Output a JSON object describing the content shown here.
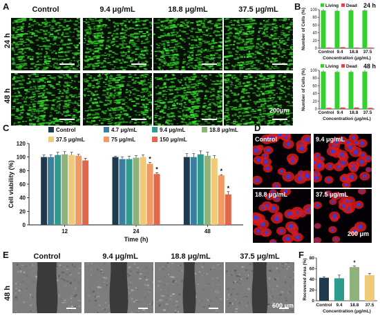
{
  "panel_labels": {
    "A": "A",
    "B": "B",
    "C": "C",
    "D": "D",
    "E": "E",
    "F": "F"
  },
  "panelA": {
    "columns": [
      "Control",
      "9.4 μg/mL",
      "18.8 μg/mL",
      "37.5 μg/mL"
    ],
    "rows": [
      "24 h",
      "48 h"
    ],
    "scale": "200μm"
  },
  "colors": {
    "green": "#32d12d",
    "red": "#e8424a",
    "navy": "#1f3a4d",
    "wound_bg": "#7d7d7d"
  },
  "panelD": {
    "labels": [
      "Control",
      "9.4 μg/mL",
      "18.8 μg/mL",
      "37.5 μg/mL"
    ],
    "scale": "200 μm"
  },
  "panelE": {
    "columns": [
      "Control",
      "9.4 μg/mL",
      "18.8 μg/mL",
      "37.5 μg/mL"
    ],
    "row": "48 h",
    "scale": "600 μm"
  },
  "chart_data": [
    {
      "id": "B-24h",
      "type": "bar",
      "time_label": "24 h",
      "categories": [
        "Control",
        "9.4",
        "18.8",
        "37.5"
      ],
      "series": [
        {
          "name": "Living",
          "values": [
            98,
            97,
            98,
            98
          ]
        },
        {
          "name": "Dead",
          "values": [
            2,
            3,
            2,
            2
          ]
        }
      ],
      "ylabel": "Number of Cells (%)",
      "xlabel": "Concentration (μg/mL)",
      "ylim": [
        0,
        100
      ],
      "yticks": [
        0,
        20,
        40,
        60,
        80,
        100
      ],
      "legend": "top"
    },
    {
      "id": "B-48h",
      "type": "bar",
      "time_label": "48 h",
      "categories": [
        "Control",
        "9.4",
        "18.8",
        "37.5"
      ],
      "series": [
        {
          "name": "Living",
          "values": [
            97,
            96,
            96,
            97
          ]
        },
        {
          "name": "Dead",
          "values": [
            3,
            4,
            4,
            3
          ]
        }
      ],
      "ylabel": "Number of Cells (%)",
      "xlabel": "Concentration (μg/mL)",
      "ylim": [
        0,
        100
      ],
      "yticks": [
        0,
        20,
        40,
        60,
        80,
        100
      ],
      "legend": "top"
    },
    {
      "id": "C",
      "type": "bar",
      "categories": [
        "12",
        "24",
        "48"
      ],
      "series": [
        {
          "name": "Control",
          "color": "#1f3a4d",
          "values": [
            100,
            100,
            100
          ],
          "err": [
            3,
            1,
            5
          ]
        },
        {
          "name": "4.7 μg/mL",
          "color": "#3a7f9e",
          "values": [
            100,
            97,
            100
          ],
          "err": [
            3,
            3,
            5
          ]
        },
        {
          "name": "9.4 μg/mL",
          "color": "#2f9b8f",
          "values": [
            103,
            97,
            104
          ],
          "err": [
            4,
            4,
            5
          ]
        },
        {
          "name": "18.8 μg/mL",
          "color": "#8fb27a",
          "values": [
            104,
            99,
            102
          ],
          "err": [
            4,
            3,
            5
          ]
        },
        {
          "name": "37.5 μg/mL",
          "color": "#f0c979",
          "values": [
            103,
            100,
            98
          ],
          "err": [
            4,
            3,
            4
          ]
        },
        {
          "name": "75 μg/mL",
          "color": "#f39a62",
          "values": [
            102,
            90,
            73
          ],
          "err": [
            2,
            2,
            1
          ]
        },
        {
          "name": "150 μg/mL",
          "color": "#e2664a",
          "values": [
            95,
            75,
            45
          ],
          "err": [
            3,
            2,
            4
          ]
        }
      ],
      "significance": "*",
      "ylabel": "Cell viability (%)",
      "xlabel": "Time (h)",
      "ylim": [
        0,
        120
      ],
      "yticks": [
        0,
        20,
        40,
        60,
        80,
        100,
        120
      ],
      "legend": "top"
    },
    {
      "id": "F",
      "type": "bar",
      "categories": [
        "Control",
        "9.4",
        "18.8",
        "37.5"
      ],
      "values": [
        43,
        42,
        63,
        48
      ],
      "err": [
        2,
        6,
        2,
        3
      ],
      "colors": [
        "#1f3a4d",
        "#2f9b8f",
        "#8fb27a",
        "#f0c979"
      ],
      "significance": "*",
      "ylabel": "Recovered Area (%)",
      "xlabel": "Concentration (μg/mL)",
      "ylim": [
        0,
        80
      ],
      "yticks": [
        0,
        20,
        40,
        60,
        80
      ]
    }
  ]
}
